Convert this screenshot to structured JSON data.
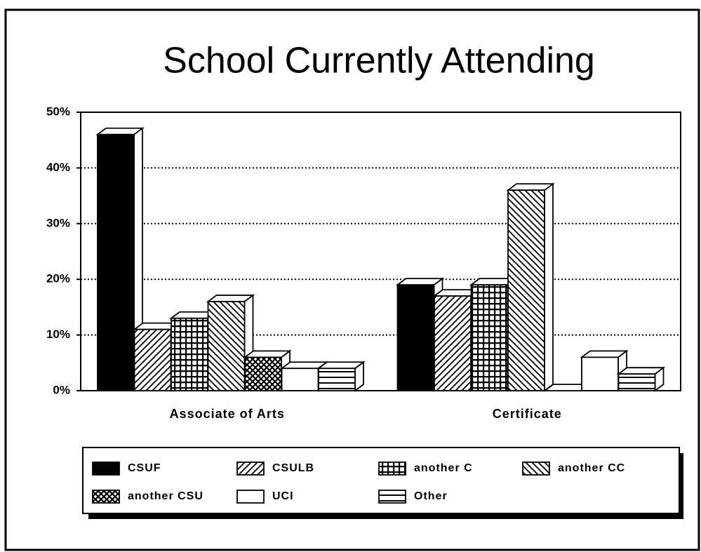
{
  "chart_data": {
    "type": "bar3d",
    "title": "School Currently Attending",
    "categories": [
      "Associate of Arts",
      "Certificate"
    ],
    "series": [
      {
        "name": "CSUF",
        "color": "#000000",
        "values": [
          46,
          19
        ]
      },
      {
        "name": "CSULB",
        "color": "#000000",
        "values": [
          11,
          17
        ]
      },
      {
        "name": "another C",
        "color": "#000000",
        "values": [
          13,
          19
        ]
      },
      {
        "name": "another CC",
        "color": "#000000",
        "values": [
          16,
          36
        ]
      },
      {
        "name": "another CSU",
        "color": "#000000",
        "values": [
          6,
          0
        ]
      },
      {
        "name": "UCI",
        "color": "#000000",
        "values": [
          4,
          6
        ]
      },
      {
        "name": "Other",
        "color": "#000000",
        "values": [
          4,
          3
        ]
      }
    ],
    "ylim": [
      0,
      50
    ],
    "yticks": [
      {
        "value": 0,
        "label": "0%"
      },
      {
        "value": 10,
        "label": "10%"
      },
      {
        "value": 20,
        "label": "20%"
      },
      {
        "value": 30,
        "label": "30%"
      },
      {
        "value": 40,
        "label": "40%"
      },
      {
        "value": 50,
        "label": "50%"
      }
    ],
    "grid": true
  }
}
